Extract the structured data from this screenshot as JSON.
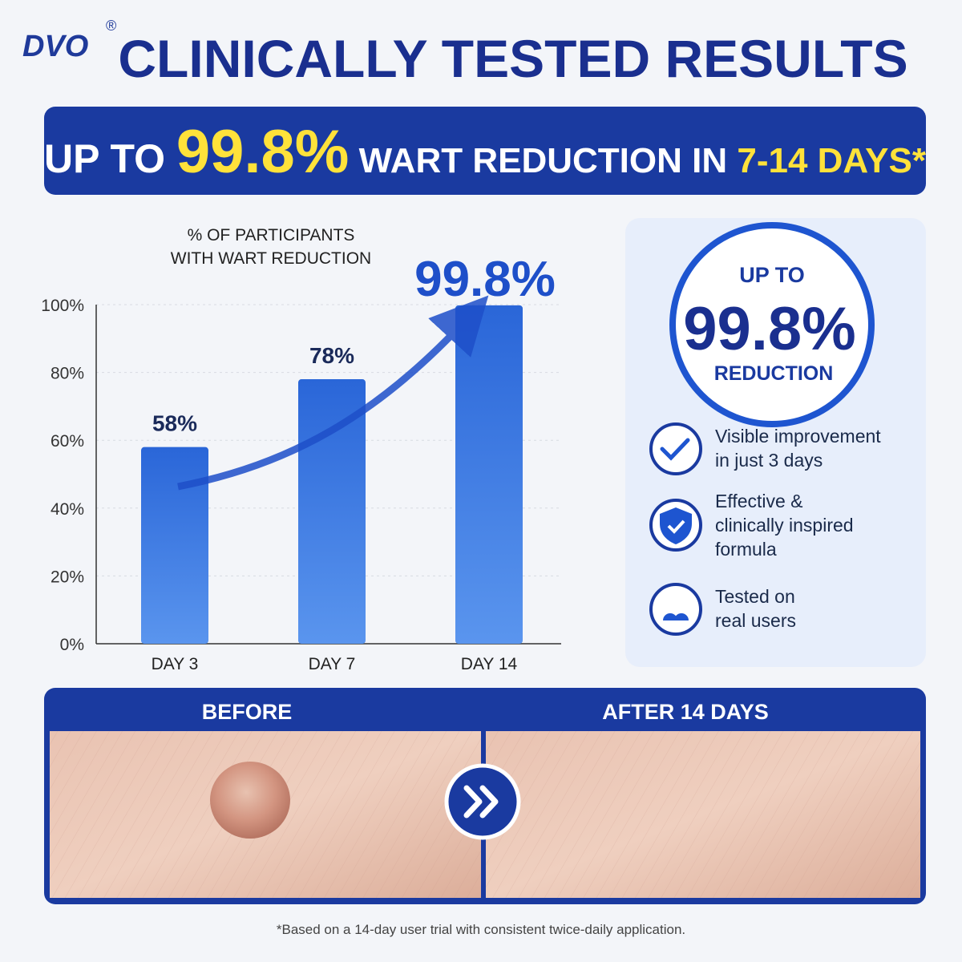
{
  "header": {
    "logo": "DVO",
    "logo_mark": "®",
    "title": "CLINICALLY TESTED RESULTS"
  },
  "banner": {
    "parts": [
      "UP TO ",
      "99.8%",
      " WART REDUCTION IN ",
      "7-14 DAYS*"
    ]
  },
  "chart_data": {
    "type": "bar",
    "title": [
      "% OF PARTICIPANTS",
      "WITH WART REDUCTION"
    ],
    "categories": [
      "DAY 3",
      "DAY 7",
      "DAY 14"
    ],
    "values": [
      58,
      78,
      99.8
    ],
    "value_labels": [
      "58%",
      "78%",
      "99.8%"
    ],
    "color": "#2f6fdc",
    "ylim": [
      0,
      100
    ],
    "yticks": [
      {
        "value": 0,
        "label": "0%"
      },
      {
        "value": 20,
        "label": "20%"
      },
      {
        "value": 40,
        "label": "40%"
      },
      {
        "value": 60,
        "label": "60%"
      },
      {
        "value": 80,
        "label": "80%"
      },
      {
        "value": 100,
        "label": "100%"
      }
    ],
    "grid": true
  },
  "badge": {
    "top": "UP TO",
    "value": "99.8%",
    "bottom": "REDUCTION"
  },
  "features": [
    {
      "lines": [
        "Visible improvement",
        "in just 3 days"
      ]
    },
    {
      "lines": [
        "Effective &",
        "clinically inspired",
        "formula"
      ]
    },
    {
      "lines": [
        "Tested on",
        "real users"
      ]
    }
  ],
  "comparison": {
    "before": "BEFORE",
    "after": "AFTER 14 DAYS"
  },
  "footnote": "*Based on a 14-day user trial with consistent twice-daily application."
}
